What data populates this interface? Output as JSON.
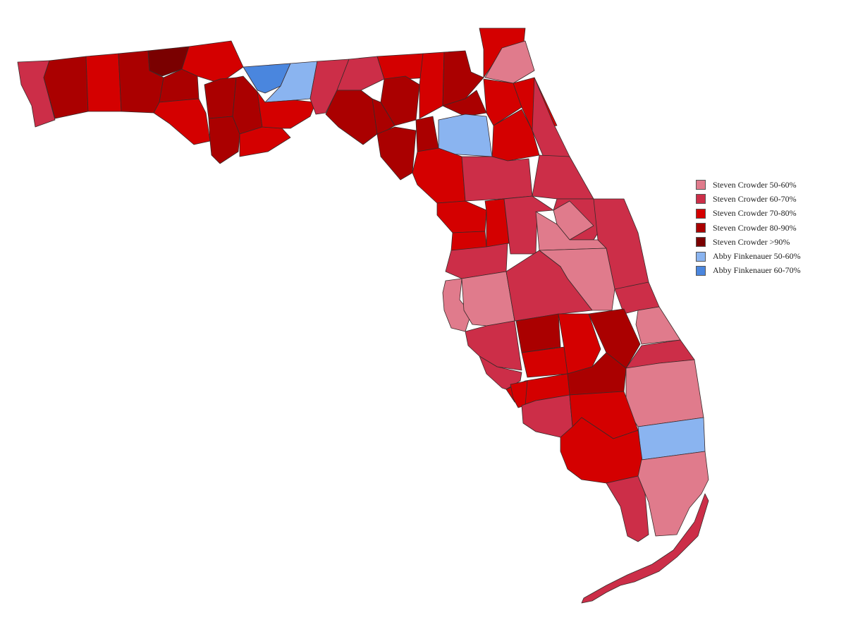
{
  "legend": {
    "items": [
      {
        "label": "Steven Crowder 50-60%",
        "color": "#e07b8c"
      },
      {
        "label": "Steven Crowder 60-70%",
        "color": "#cc2e48"
      },
      {
        "label": "Steven Crowder 70-80%",
        "color": "#d40000"
      },
      {
        "label": "Steven Crowder 80-90%",
        "color": "#aa0000"
      },
      {
        "label": "Steven Crowder >90%",
        "color": "#7a0000"
      },
      {
        "label": "Abby Finkenauer 50-60%",
        "color": "#8ab4f0"
      },
      {
        "label": "Abby Finkenauer 60-70%",
        "color": "#4a86de"
      }
    ]
  }
}
